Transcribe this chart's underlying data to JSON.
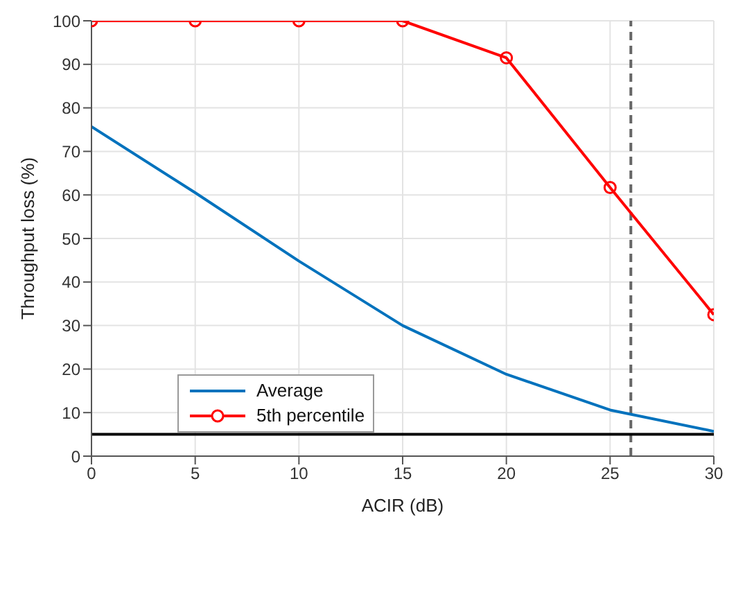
{
  "chart_data": {
    "type": "line",
    "xlabel": "ACIR (dB)",
    "ylabel": "Throughput loss (%)",
    "x": [
      0,
      5,
      10,
      15,
      20,
      25,
      30
    ],
    "series": [
      {
        "name": "Average",
        "color": "#0072bd",
        "values": [
          75.7,
          60.5,
          44.8,
          30,
          18.8,
          10.6,
          5.7
        ],
        "marker": "none"
      },
      {
        "name": "5th percentile",
        "color": "#ff0000",
        "values": [
          100,
          100,
          100,
          100,
          91.5,
          61.7,
          32.5
        ],
        "marker": "circle"
      }
    ],
    "xlim": [
      0,
      30
    ],
    "xticks": [
      0,
      5,
      10,
      15,
      20,
      25,
      30
    ],
    "ylim": [
      0,
      100
    ],
    "yticks": [
      0,
      10,
      20,
      30,
      40,
      50,
      60,
      70,
      80,
      90,
      100
    ],
    "grid": true,
    "legend": "bottom left",
    "line_style": "solid",
    "ref_lines": [
      {
        "axis": "x",
        "value": 26,
        "color": "#666666",
        "line_style": "dashed"
      },
      {
        "axis": "y",
        "value": 5,
        "color": "#000000",
        "line_style": "solid"
      }
    ]
  }
}
